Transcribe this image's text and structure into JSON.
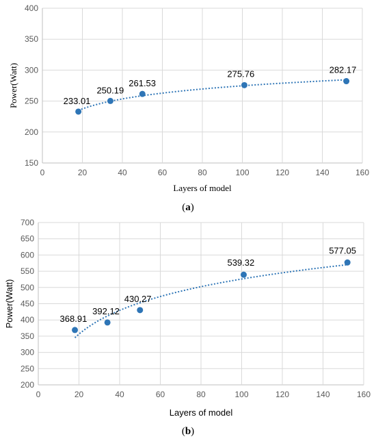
{
  "chart_data": [
    {
      "type": "scatter",
      "caption_letter": "a",
      "xlabel": "Layers of model",
      "ylabel": "Power(Watt)",
      "xlim": [
        0,
        160
      ],
      "ylim": [
        150,
        400
      ],
      "xticks": [
        0,
        20,
        40,
        60,
        80,
        100,
        120,
        140,
        160
      ],
      "yticks": [
        150,
        200,
        250,
        300,
        350,
        400
      ],
      "grid": true,
      "trendline": "logarithmic",
      "points": [
        {
          "x": 18,
          "y": 233.01,
          "label": "233.01"
        },
        {
          "x": 34,
          "y": 250.19,
          "label": "250.19"
        },
        {
          "x": 50,
          "y": 261.53,
          "label": "261.53"
        },
        {
          "x": 101,
          "y": 275.76,
          "label": "275.76"
        },
        {
          "x": 152,
          "y": 282.17,
          "label": "282.17"
        }
      ]
    },
    {
      "type": "scatter",
      "caption_letter": "b",
      "xlabel": "Layers of model",
      "ylabel": "Power(Watt)",
      "xlim": [
        0,
        160
      ],
      "ylim": [
        200,
        700
      ],
      "xticks": [
        0,
        20,
        40,
        60,
        80,
        100,
        120,
        140,
        160
      ],
      "yticks": [
        200,
        250,
        300,
        350,
        400,
        450,
        500,
        550,
        600,
        650,
        700
      ],
      "grid": true,
      "trendline": "logarithmic",
      "points": [
        {
          "x": 18,
          "y": 368.91,
          "label": "368.91"
        },
        {
          "x": 34,
          "y": 392.12,
          "label": "392.12"
        },
        {
          "x": 50,
          "y": 430.27,
          "label": "430.27"
        },
        {
          "x": 101,
          "y": 539.32,
          "label": "539.32"
        },
        {
          "x": 152,
          "y": 577.05,
          "label": "577.05"
        }
      ]
    }
  ]
}
